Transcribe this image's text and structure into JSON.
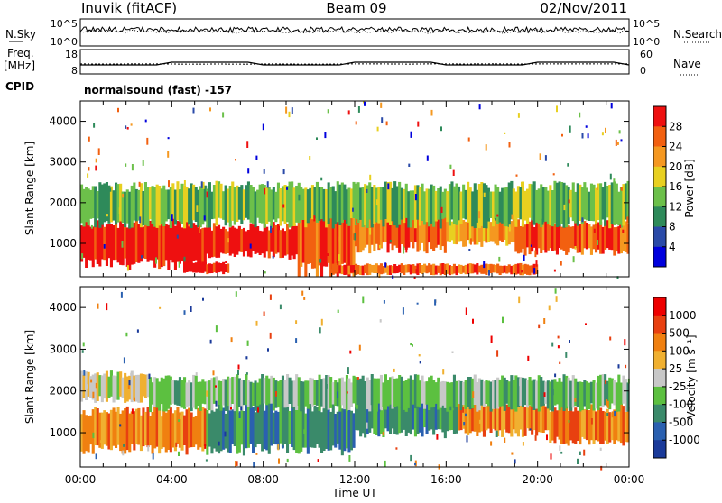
{
  "header": {
    "radar": "Inuvik (fitACF)",
    "beam": "Beam 09",
    "date": "02/Nov/2011"
  },
  "strip_panels": {
    "noise_left_label": "N.Sky",
    "noise_left_ticks": [
      "10^5",
      "10^0"
    ],
    "noise_right_label": "N.Search",
    "noise_right_ticks": [
      "10^5",
      "10^0"
    ],
    "freq_label_line1": "Freq.",
    "freq_label_line2": "[MHz]",
    "freq_left_ticks": [
      "18",
      "8"
    ],
    "nave_label": "Nave",
    "nave_right_ticks": [
      "60",
      "0"
    ],
    "cpid_label": "CPID",
    "cpid_value": "normalsound (fast) -157"
  },
  "chart_data": [
    {
      "type": "heatmap",
      "parameter": "Power",
      "ylabel": "Slant Range [km]",
      "yticks": [
        1000,
        2000,
        3000,
        4000
      ],
      "ylim": [
        180,
        4500
      ],
      "xlim_hours": [
        0,
        24
      ],
      "colorbar": {
        "label": "Power [dB]",
        "ticks": [
          "28",
          "24",
          "20",
          "16",
          "12",
          "8",
          "4"
        ],
        "colors": [
          "#0000dd",
          "#2a4aa8",
          "#2e8a5a",
          "#6cc04a",
          "#e8d020",
          "#f59820",
          "#f26010",
          "#ee1010"
        ]
      },
      "bands": [
        {
          "t0": 0.0,
          "t1": 5.5,
          "r0": 500,
          "r1": 1500,
          "level": 7
        },
        {
          "t0": 5.5,
          "t1": 9.5,
          "r0": 700,
          "r1": 1400,
          "level": 7
        },
        {
          "t0": 9.5,
          "t1": 12.0,
          "r0": 300,
          "r1": 1800,
          "level": 6
        },
        {
          "t0": 12.0,
          "t1": 16.0,
          "r0": 900,
          "r1": 1900,
          "level": 6
        },
        {
          "t0": 16.0,
          "t1": 19.0,
          "r0": 1000,
          "r1": 1600,
          "level": 5
        },
        {
          "t0": 19.0,
          "t1": 24.0,
          "r0": 800,
          "r1": 1500,
          "level": 6
        },
        {
          "t0": 0.0,
          "t1": 24.0,
          "r0": 1500,
          "r1": 2400,
          "level": 3
        },
        {
          "t0": 4.5,
          "t1": 6.5,
          "r0": 280,
          "r1": 520,
          "level": 7
        },
        {
          "t0": 11.0,
          "t1": 20.0,
          "r0": 250,
          "r1": 480,
          "level": 6
        }
      ]
    },
    {
      "type": "heatmap",
      "parameter": "Velocity",
      "ylabel": "Slant Range [km]",
      "yticks": [
        1000,
        2000,
        3000,
        4000
      ],
      "ylim": [
        180,
        4500
      ],
      "xlim_hours": [
        0,
        24
      ],
      "xticks": [
        "00:00",
        "04:00",
        "08:00",
        "12:00",
        "16:00",
        "20:00",
        "00:00"
      ],
      "xlabel": "Time UT",
      "colorbar": {
        "label": "Velocity [m s⁻¹]",
        "ticks": [
          "1000",
          "500",
          "100",
          "25",
          "-25",
          "-100",
          "-500",
          "-1000"
        ],
        "colors": [
          "#1a3a9a",
          "#2a60b0",
          "#3a8a6a",
          "#5cc040",
          "#c8c8c8",
          "#f0b030",
          "#f08010",
          "#e84010",
          "#ee0000"
        ]
      },
      "bands": [
        {
          "t0": 0.0,
          "t1": 5.5,
          "r0": 600,
          "r1": 1500,
          "level": 6
        },
        {
          "t0": 5.5,
          "t1": 12.0,
          "r0": 600,
          "r1": 1600,
          "level": 2
        },
        {
          "t0": 12.0,
          "t1": 16.5,
          "r0": 1000,
          "r1": 1900,
          "level": 2
        },
        {
          "t0": 16.5,
          "t1": 20.5,
          "r0": 1000,
          "r1": 1700,
          "level": 6
        },
        {
          "t0": 20.5,
          "t1": 24.0,
          "r0": 800,
          "r1": 1600,
          "level": 6
        },
        {
          "t0": 0.0,
          "t1": 3.0,
          "r0": 1800,
          "r1": 2400,
          "level": 4
        },
        {
          "t0": 3.0,
          "t1": 24.0,
          "r0": 1600,
          "r1": 2300,
          "level": 3
        }
      ]
    }
  ]
}
